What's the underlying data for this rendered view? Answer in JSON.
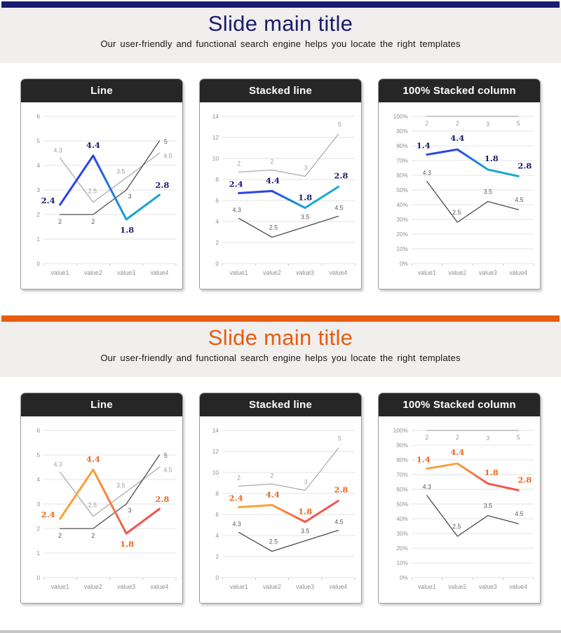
{
  "sections": [
    {
      "title": "Slide main title",
      "subtitle": "Our user-friendly and functional search engine helps you locate the right templates",
      "palette": {
        "bar": "#1b1b70",
        "title": "#1b1b6e",
        "accent_primary": "#2b44e8",
        "accent_secondary": "#17a8d4",
        "accent_label": "#1c1c6e"
      }
    },
    {
      "title": "Slide main title",
      "subtitle": "Our user-friendly and functional search engine helps you locate the right templates",
      "palette": {
        "bar": "#e85c0e",
        "title": "#e85c0e",
        "accent_primary": "#fba03c",
        "accent_secondary": "#f2564f",
        "accent_label": "#ed6a1f"
      }
    }
  ],
  "chart_data": [
    {
      "type": "line",
      "title": "Line",
      "categories": [
        "value1",
        "value2",
        "value3",
        "value4"
      ],
      "y_axis": {
        "min": 0,
        "max": 6,
        "step": 1,
        "format": "number",
        "tick_labels": [
          "0",
          "1",
          "2",
          "3",
          "4",
          "5",
          "6"
        ]
      },
      "grid": true,
      "legend": "none",
      "series": [
        {
          "name": "gray-light-series",
          "role": "gray_light",
          "values": [
            4.3,
            2.5,
            3.5,
            4.5
          ],
          "labels": [
            "4.3",
            "2.5",
            "3.5",
            "4.5"
          ],
          "label_offsets": [
            [
              -3,
              -8
            ],
            [
              -1,
              -13
            ],
            [
              -8,
              -6
            ],
            [
              12,
              7
            ]
          ]
        },
        {
          "name": "gray-dark-series",
          "role": "gray_dark",
          "values": [
            2,
            2,
            3,
            5
          ],
          "labels": [
            "2",
            "2",
            "3",
            "5"
          ],
          "label_offsets": [
            [
              0,
              13
            ],
            [
              0,
              13
            ],
            [
              5,
              12
            ],
            [
              9,
              4
            ]
          ]
        },
        {
          "name": "accent-series",
          "role": "accent",
          "values": [
            2.4,
            4.4,
            1.8,
            2.8
          ],
          "labels": [
            "2.4",
            "4.4",
            "1.8",
            "2.8"
          ],
          "label_offsets": [
            [
              -17,
              -2
            ],
            [
              0,
              -11
            ],
            [
              1,
              19
            ],
            [
              4,
              -10
            ]
          ]
        }
      ]
    },
    {
      "type": "stacked_line",
      "title": "Stacked line",
      "categories": [
        "value1",
        "value2",
        "value3",
        "value4"
      ],
      "y_axis": {
        "min": 0,
        "max": 14,
        "step": 2,
        "format": "number",
        "tick_labels": [
          "0",
          "2",
          "4",
          "6",
          "8",
          "10",
          "12",
          "14"
        ]
      },
      "grid": true,
      "legend": "none",
      "series": [
        {
          "name": "gray-dark-series",
          "role": "gray_dark",
          "values": [
            4.3,
            2.5,
            3.5,
            4.5
          ],
          "labels": [
            "4.3",
            "2.5",
            "3.5",
            "4.5"
          ],
          "label_offsets": [
            [
              -3,
              -9
            ],
            [
              2,
              -11
            ],
            [
              0,
              -11
            ],
            [
              1,
              -9
            ]
          ]
        },
        {
          "name": "accent-series",
          "role": "accent",
          "values": [
            2.4,
            4.4,
            1.8,
            2.8
          ],
          "labels": [
            "2.4",
            "4.4",
            "1.8",
            "2.8"
          ],
          "label_offsets": [
            [
              -4,
              -9
            ],
            [
              1,
              -11
            ],
            [
              0,
              -11
            ],
            [
              4,
              -12
            ]
          ]
        },
        {
          "name": "gray-light-series",
          "role": "gray_light",
          "values": [
            2,
            2,
            3,
            5
          ],
          "labels": [
            "2",
            "2",
            "3",
            "5"
          ],
          "label_offsets": [
            [
              0,
              -9
            ],
            [
              0,
              -9
            ],
            [
              1,
              -9
            ],
            [
              2,
              -11
            ]
          ]
        }
      ]
    },
    {
      "type": "percent_stacked",
      "title": "100% Stacked column",
      "categories": [
        "value1",
        "value2",
        "value3",
        "value4"
      ],
      "y_axis": {
        "min": 0,
        "max": 100,
        "step": 10,
        "format": "percent",
        "tick_labels": [
          "0%",
          "10%",
          "20%",
          "30%",
          "40%",
          "50%",
          "60%",
          "70%",
          "80%",
          "90%",
          "100%"
        ]
      },
      "grid": true,
      "legend": "none",
      "series": [
        {
          "name": "gray-dark-series",
          "role": "gray_dark",
          "values": [
            4.3,
            2.5,
            3.5,
            4.5
          ],
          "labels": [
            "4.3",
            "2.5",
            "3.5",
            "4.5"
          ],
          "label_offsets": [
            [
              0,
              -9
            ],
            [
              -1,
              -11
            ],
            [
              0,
              -11
            ],
            [
              1,
              -11
            ]
          ]
        },
        {
          "name": "accent-series",
          "role": "accent",
          "values": [
            1.4,
            4.4,
            1.8,
            2.8
          ],
          "labels": [
            "1.4",
            "4.4",
            "1.8",
            "2.8"
          ],
          "label_offsets": [
            [
              -5,
              -9
            ],
            [
              0,
              -12
            ],
            [
              5,
              -12
            ],
            [
              9,
              -11
            ]
          ]
        },
        {
          "name": "gray-light-series",
          "role": "gray_light",
          "values": [
            2,
            2,
            3,
            5
          ],
          "labels": [
            "2",
            "2",
            "3",
            "5"
          ],
          "label_offsets": [
            [
              0,
              13
            ],
            [
              0,
              13
            ],
            [
              0,
              14
            ],
            [
              0,
              13
            ]
          ]
        }
      ]
    }
  ]
}
